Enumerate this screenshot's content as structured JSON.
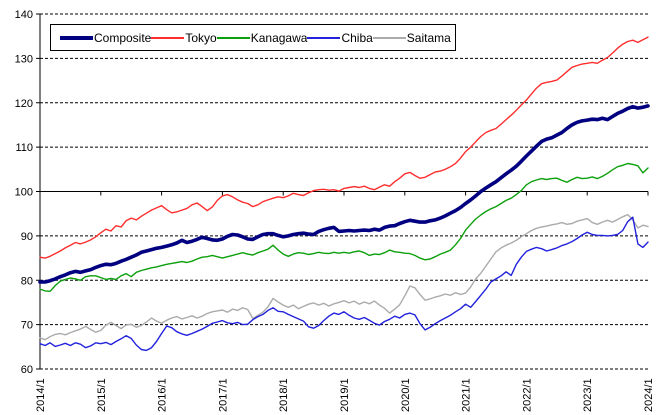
{
  "chart_data": {
    "type": "line",
    "title": "",
    "frequency": "monthly",
    "x_start": "2014/1",
    "x_end": "2024/1",
    "x_labels": [
      "2014/1",
      "2015/1",
      "2016/1",
      "2017/1",
      "2018/1",
      "2019/1",
      "2020/1",
      "2021/1",
      "2022/1",
      "2023/1",
      "2024/1"
    ],
    "months_per_x_label": 12,
    "y_ticks": [
      60,
      70,
      80,
      90,
      100,
      110,
      120,
      130,
      140
    ],
    "ylim": [
      60,
      140
    ],
    "axis_cross_value": 100,
    "grid": "dashed-horizontal",
    "legend_position": "top",
    "axis_color": "#000000",
    "series": [
      {
        "name": "Saitama",
        "color": "#ababab",
        "width": 1.4,
        "values": [
          67.0,
          66.6,
          67.3,
          67.8,
          68.0,
          67.7,
          68.2,
          68.6,
          69.0,
          69.6,
          68.9,
          68.3,
          68.7,
          69.9,
          70.5,
          69.8,
          69.1,
          69.9,
          70.1,
          69.4,
          69.8,
          70.6,
          71.5,
          70.8,
          70.3,
          71.0,
          71.5,
          71.8,
          71.3,
          71.6,
          72.0,
          71.5,
          71.9,
          72.5,
          72.9,
          73.1,
          73.3,
          72.8,
          73.5,
          73.2,
          73.8,
          73.4,
          71.4,
          72.1,
          72.8,
          74.0,
          75.9,
          75.1,
          74.4,
          73.9,
          74.4,
          73.6,
          74.1,
          74.6,
          74.9,
          74.4,
          74.8,
          74.2,
          74.7,
          75.0,
          75.4,
          74.9,
          75.3,
          74.6,
          75.1,
          74.7,
          75.3,
          74.4,
          73.7,
          72.6,
          73.5,
          74.5,
          76.5,
          78.7,
          78.3,
          76.8,
          75.5,
          75.8,
          76.2,
          76.5,
          76.9,
          76.6,
          77.2,
          76.8,
          77.1,
          78.5,
          80.3,
          81.6,
          83.2,
          84.8,
          86.4,
          87.3,
          87.9,
          88.4,
          89.0,
          89.8,
          90.5,
          91.2,
          91.7,
          92.0,
          92.2,
          92.5,
          92.7,
          93.0,
          92.6,
          92.8,
          93.3,
          93.6,
          93.9,
          93.0,
          92.6,
          93.1,
          93.5,
          93.1,
          93.7,
          94.3,
          94.8,
          93.6,
          91.8,
          92.4,
          92.1
        ]
      },
      {
        "name": "Chiba",
        "color": "#2222dd",
        "width": 1.4,
        "values": [
          65.7,
          65.3,
          65.9,
          65.1,
          65.4,
          65.8,
          65.3,
          65.9,
          65.6,
          64.8,
          65.2,
          65.9,
          65.7,
          66.0,
          65.5,
          66.2,
          66.8,
          67.5,
          66.9,
          65.4,
          64.4,
          64.2,
          64.8,
          66.2,
          68.0,
          69.7,
          69.3,
          68.4,
          67.9,
          67.6,
          68.0,
          68.5,
          69.0,
          69.6,
          70.3,
          70.6,
          70.9,
          70.4,
          70.2,
          70.5,
          70.0,
          70.1,
          71.1,
          71.8,
          72.3,
          73.2,
          73.8,
          73.0,
          72.9,
          72.3,
          71.8,
          71.3,
          70.8,
          69.5,
          69.2,
          69.8,
          70.9,
          71.9,
          72.6,
          72.3,
          72.9,
          72.1,
          71.5,
          71.2,
          71.6,
          71.0,
          70.3,
          69.9,
          70.7,
          71.2,
          71.9,
          71.5,
          72.3,
          72.6,
          72.2,
          70.2,
          68.8,
          69.4,
          70.2,
          70.9,
          71.5,
          72.1,
          72.9,
          73.6,
          74.6,
          73.9,
          75.2,
          76.6,
          78.0,
          79.6,
          80.3,
          81.0,
          81.9,
          81.1,
          83.6,
          85.2,
          86.5,
          87.0,
          87.4,
          87.1,
          86.6,
          86.9,
          87.3,
          87.8,
          88.2,
          88.7,
          89.4,
          90.2,
          90.8,
          90.3,
          90.1,
          90.1,
          90.0,
          90.1,
          90.3,
          91.2,
          93.2,
          94.2,
          88.2,
          87.4,
          88.6
        ]
      },
      {
        "name": "Kanagawa",
        "color": "#0ca00c",
        "width": 1.4,
        "values": [
          78.0,
          77.6,
          77.5,
          78.8,
          79.8,
          80.2,
          80.5,
          80.3,
          80.0,
          80.8,
          81.0,
          81.0,
          80.6,
          80.2,
          80.4,
          80.2,
          81.0,
          81.5,
          80.8,
          81.8,
          82.2,
          82.5,
          82.8,
          83.0,
          83.3,
          83.6,
          83.8,
          84.0,
          84.2,
          84.0,
          84.3,
          84.8,
          85.2,
          85.3,
          85.6,
          85.3,
          85.0,
          85.3,
          85.6,
          85.9,
          86.2,
          85.9,
          85.7,
          86.2,
          86.6,
          87.0,
          87.9,
          86.8,
          85.9,
          85.4,
          85.9,
          86.2,
          86.1,
          85.8,
          86.0,
          86.3,
          86.1,
          86.0,
          86.3,
          86.1,
          86.3,
          86.1,
          86.4,
          86.6,
          86.2,
          85.6,
          85.9,
          85.8,
          86.2,
          86.8,
          86.4,
          86.3,
          86.1,
          86.0,
          85.6,
          85.0,
          84.6,
          84.8,
          85.3,
          85.9,
          86.3,
          86.8,
          88.0,
          89.4,
          91.3,
          92.6,
          93.8,
          94.7,
          95.5,
          96.1,
          96.6,
          97.3,
          98.0,
          98.5,
          99.3,
          100.2,
          101.5,
          102.2,
          102.6,
          102.9,
          102.7,
          102.9,
          103.0,
          102.5,
          102.1,
          102.7,
          103.2,
          102.9,
          103.0,
          103.3,
          102.9,
          103.4,
          104.1,
          104.9,
          105.6,
          105.9,
          106.3,
          106.1,
          105.8,
          104.2,
          105.3
        ]
      },
      {
        "name": "Tokyo",
        "color": "#ff2e2e",
        "width": 1.4,
        "values": [
          85.2,
          85.0,
          85.4,
          86.0,
          86.6,
          87.3,
          87.9,
          88.5,
          88.2,
          88.6,
          89.1,
          89.8,
          90.7,
          91.5,
          91.1,
          92.3,
          92.0,
          93.4,
          94.0,
          93.6,
          94.4,
          95.1,
          95.8,
          96.3,
          96.8,
          95.9,
          95.2,
          95.4,
          95.8,
          96.2,
          97.0,
          97.4,
          96.6,
          95.7,
          96.5,
          98.0,
          99.0,
          99.3,
          98.8,
          98.1,
          97.6,
          97.3,
          96.6,
          97.0,
          97.7,
          98.1,
          98.5,
          98.8,
          98.6,
          99.0,
          99.6,
          99.3,
          99.1,
          99.7,
          100.2,
          100.4,
          100.5,
          100.3,
          100.4,
          100.1,
          100.7,
          100.9,
          101.1,
          100.9,
          101.2,
          100.7,
          100.4,
          101.0,
          101.5,
          101.2,
          102.2,
          103.0,
          104.0,
          104.3,
          103.6,
          103.0,
          103.2,
          103.8,
          104.4,
          104.6,
          105.0,
          105.6,
          106.3,
          107.5,
          109.0,
          110.0,
          111.2,
          112.4,
          113.3,
          113.8,
          114.2,
          115.2,
          116.2,
          117.2,
          118.3,
          119.5,
          120.6,
          122.0,
          123.3,
          124.3,
          124.6,
          124.8,
          125.1,
          126.0,
          127.0,
          128.0,
          128.4,
          128.7,
          128.9,
          129.1,
          128.9,
          129.6,
          130.2,
          131.2,
          132.3,
          133.2,
          133.8,
          134.1,
          133.6,
          134.2,
          134.8
        ]
      },
      {
        "name": "Composite",
        "color": "#000080",
        "width": 3.6,
        "values": [
          79.6,
          79.6,
          79.9,
          80.3,
          80.8,
          81.2,
          81.7,
          82.0,
          81.8,
          82.1,
          82.4,
          82.9,
          83.3,
          83.6,
          83.5,
          83.8,
          84.3,
          84.7,
          85.2,
          85.7,
          86.3,
          86.6,
          86.9,
          87.2,
          87.4,
          87.7,
          88.0,
          88.4,
          89.0,
          88.5,
          88.8,
          89.2,
          89.7,
          89.4,
          89.1,
          89.0,
          89.3,
          89.9,
          90.3,
          90.2,
          89.8,
          89.3,
          89.2,
          89.8,
          90.3,
          90.5,
          90.5,
          90.1,
          89.8,
          90.0,
          90.3,
          90.5,
          90.6,
          90.4,
          90.3,
          91.0,
          91.4,
          91.7,
          91.9,
          91.0,
          91.1,
          91.2,
          91.1,
          91.2,
          91.3,
          91.2,
          91.5,
          91.3,
          91.9,
          92.2,
          92.3,
          92.8,
          93.2,
          93.5,
          93.3,
          93.1,
          93.1,
          93.4,
          93.6,
          94.0,
          94.5,
          95.1,
          95.7,
          96.4,
          97.3,
          98.1,
          99.0,
          100.0,
          100.8,
          101.5,
          102.2,
          103.1,
          104.0,
          104.8,
          105.7,
          106.8,
          108.0,
          109.1,
          110.2,
          111.3,
          111.8,
          112.1,
          112.7,
          113.3,
          114.2,
          115.0,
          115.6,
          115.9,
          116.1,
          116.3,
          116.2,
          116.5,
          116.2,
          116.9,
          117.6,
          118.1,
          118.7,
          119.1,
          118.8,
          119.0,
          119.3
        ]
      }
    ],
    "legend_order": [
      "Composite",
      "Tokyo",
      "Kanagawa",
      "Chiba",
      "Saitama"
    ]
  }
}
